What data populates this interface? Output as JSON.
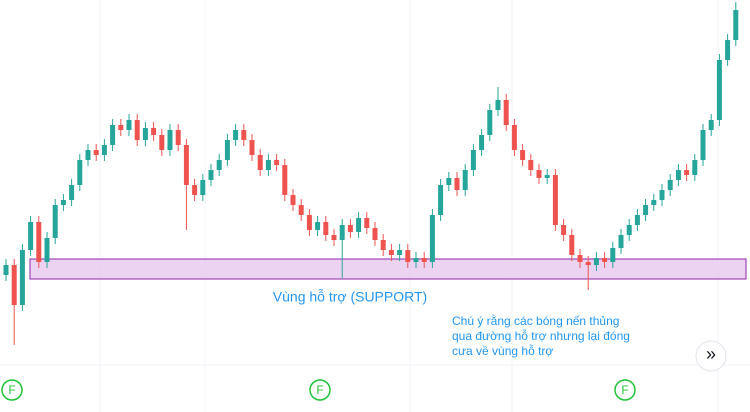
{
  "chart_data": {
    "type": "candlestick",
    "ylim": [
      0,
      412
    ],
    "up_color": "#26a69a",
    "down_color": "#ef5350",
    "open": [
      137,
      147,
      107,
      162,
      190,
      150,
      174,
      207,
      212,
      227,
      252,
      262,
      257,
      267,
      287,
      282,
      292,
      272,
      284,
      277,
      262,
      282,
      267,
      227,
      217,
      232,
      242,
      252,
      272,
      282,
      272,
      257,
      242,
      252,
      247,
      217,
      207,
      197,
      182,
      190,
      177,
      172,
      187,
      180,
      194,
      184,
      172,
      162,
      157,
      162,
      150,
      154,
      150,
      197,
      227,
      234,
      222,
      242,
      262,
      277,
      302,
      312,
      287,
      262,
      252,
      242,
      234,
      237,
      187,
      177,
      157,
      150,
      147,
      154,
      150,
      164,
      177,
      187,
      197,
      207,
      212,
      222,
      232,
      242,
      237,
      252,
      282,
      292,
      352,
      372
    ],
    "high": [
      153,
      153,
      168,
      196,
      196,
      180,
      213,
      218,
      233,
      258,
      268,
      268,
      273,
      293,
      293,
      298,
      298,
      290,
      290,
      283,
      288,
      288,
      273,
      233,
      238,
      248,
      258,
      278,
      288,
      288,
      278,
      263,
      258,
      258,
      253,
      223,
      213,
      203,
      196,
      196,
      183,
      193,
      193,
      200,
      200,
      190,
      178,
      168,
      168,
      168,
      160,
      160,
      203,
      233,
      240,
      240,
      248,
      268,
      283,
      308,
      325,
      318,
      293,
      268,
      258,
      248,
      243,
      243,
      193,
      183,
      163,
      156,
      160,
      160,
      170,
      183,
      193,
      203,
      213,
      218,
      228,
      238,
      248,
      248,
      258,
      288,
      298,
      358,
      378,
      410
    ],
    "low": [
      131,
      67,
      101,
      156,
      144,
      144,
      168,
      201,
      206,
      221,
      246,
      251,
      251,
      261,
      276,
      276,
      266,
      266,
      271,
      256,
      256,
      261,
      182,
      211,
      211,
      226,
      236,
      246,
      266,
      266,
      251,
      236,
      236,
      241,
      211,
      201,
      191,
      176,
      176,
      171,
      166,
      134,
      174,
      174,
      178,
      166,
      156,
      151,
      151,
      144,
      144,
      144,
      144,
      191,
      221,
      216,
      216,
      236,
      256,
      271,
      296,
      281,
      256,
      246,
      236,
      228,
      228,
      181,
      171,
      151,
      144,
      122,
      141,
      144,
      144,
      158,
      171,
      181,
      191,
      201,
      206,
      216,
      226,
      231,
      231,
      246,
      276,
      286,
      346,
      366
    ],
    "close": [
      147,
      107,
      162,
      190,
      150,
      174,
      207,
      212,
      227,
      252,
      262,
      257,
      267,
      287,
      282,
      292,
      272,
      284,
      277,
      262,
      282,
      267,
      227,
      217,
      232,
      242,
      252,
      272,
      282,
      272,
      257,
      242,
      252,
      247,
      217,
      207,
      197,
      182,
      190,
      177,
      172,
      187,
      180,
      194,
      184,
      172,
      162,
      157,
      162,
      150,
      154,
      150,
      197,
      227,
      234,
      222,
      242,
      262,
      277,
      302,
      312,
      287,
      262,
      252,
      242,
      234,
      237,
      187,
      177,
      157,
      150,
      147,
      154,
      150,
      164,
      177,
      187,
      197,
      207,
      212,
      222,
      232,
      242,
      237,
      252,
      282,
      292,
      352,
      372,
      402
    ],
    "support_zone": {
      "range": [
        133,
        153
      ],
      "fill": "#e8c8ef",
      "stroke": "#8e24aa"
    },
    "annotations": [
      {
        "text": "Vùng hỗ trợ (SUPPORT)",
        "color": "#2196f3"
      },
      {
        "lines": [
          "Chú ý rằng các bóng nến thủng",
          "qua đường hỗ trợ nhưng lại đóng",
          "cưa về vùng hỗ trợ"
        ],
        "color": "#2196f3"
      }
    ],
    "markers": [
      "F",
      "F",
      "F"
    ],
    "marker_color": "#22c33a",
    "scroll_button": "»"
  }
}
